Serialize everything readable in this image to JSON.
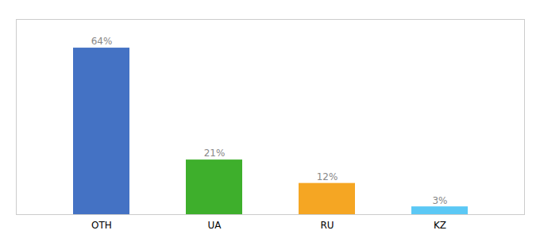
{
  "chart_data": {
    "type": "bar",
    "categories": [
      "OTH",
      "UA",
      "RU",
      "KZ"
    ],
    "values": [
      64,
      21,
      12,
      3
    ],
    "value_labels": [
      "64%",
      "21%",
      "12%",
      "3%"
    ],
    "data_labels": true,
    "colors": [
      "#4472C4",
      "#3EAF2C",
      "#F5A623",
      "#5BC8F5"
    ],
    "ylim": [
      0,
      75
    ],
    "grid": false,
    "tick_labels": "x"
  }
}
